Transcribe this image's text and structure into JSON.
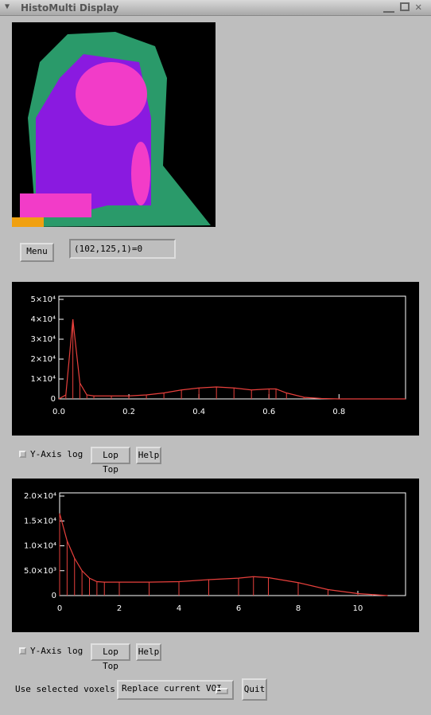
{
  "window": {
    "title": "HistoMulti Display"
  },
  "controls": {
    "menu": "Menu",
    "readout": "(102,125,1)=0",
    "row1": {
      "ylog": "Y-Axis log",
      "loptop": "Lop Top",
      "help": "Help"
    },
    "row2": {
      "ylog": "Y-Axis log",
      "loptop": "Lop Top",
      "help": "Help"
    },
    "voxels_label": "Use selected voxels:",
    "voxels_choice": "Replace current VOI",
    "quit": "Quit"
  },
  "chart_data": [
    {
      "type": "line",
      "color": "#e8403c",
      "x": [
        0.0,
        0.02,
        0.04,
        0.06,
        0.08,
        0.1,
        0.15,
        0.2,
        0.25,
        0.3,
        0.35,
        0.4,
        0.45,
        0.5,
        0.55,
        0.6,
        0.62,
        0.65,
        0.7,
        0.75,
        0.8,
        0.9,
        0.99
      ],
      "values": [
        0,
        2000,
        40000,
        8000,
        2000,
        1500,
        1500,
        1500,
        2000,
        3000,
        4500,
        5500,
        6000,
        5500,
        4500,
        5000,
        5000,
        3000,
        800,
        200,
        0,
        0,
        0
      ],
      "xlim": [
        0,
        0.99
      ],
      "ylim": [
        0,
        50000
      ],
      "xticks": [
        {
          "value": 0,
          "label": "0.0"
        },
        0.2,
        0.4,
        0.6,
        0.8
      ],
      "yticks": [
        0,
        {
          "value": 10000,
          "label": "1×10⁴"
        },
        {
          "value": 20000,
          "label": "2×10⁴"
        },
        {
          "value": 30000,
          "label": "3×10⁴"
        },
        {
          "value": 40000,
          "label": "4×10⁴"
        },
        {
          "value": 50000,
          "label": "5×10⁴"
        }
      ]
    },
    {
      "type": "line",
      "color": "#e8403c",
      "x": [
        0,
        0.25,
        0.5,
        0.75,
        1,
        1.25,
        1.5,
        2,
        3,
        4,
        5,
        6,
        6.5,
        7,
        8,
        9,
        10,
        10.5,
        11
      ],
      "values": [
        16500,
        11000,
        7500,
        5000,
        3500,
        2800,
        2700,
        2700,
        2700,
        2800,
        3200,
        3500,
        3800,
        3600,
        2600,
        1200,
        400,
        200,
        0
      ],
      "xlim": [
        0,
        11.6
      ],
      "ylim": [
        0,
        20000
      ],
      "xticks": [
        0,
        2,
        4,
        6,
        8,
        10
      ],
      "yticks": [
        0,
        {
          "value": 5000,
          "label": "5.0×10³"
        },
        {
          "value": 10000,
          "label": "1.0×10⁴"
        },
        {
          "value": 15000,
          "label": "1.5×10⁴"
        },
        {
          "value": 20000,
          "label": "2.0×10⁴"
        }
      ]
    }
  ]
}
